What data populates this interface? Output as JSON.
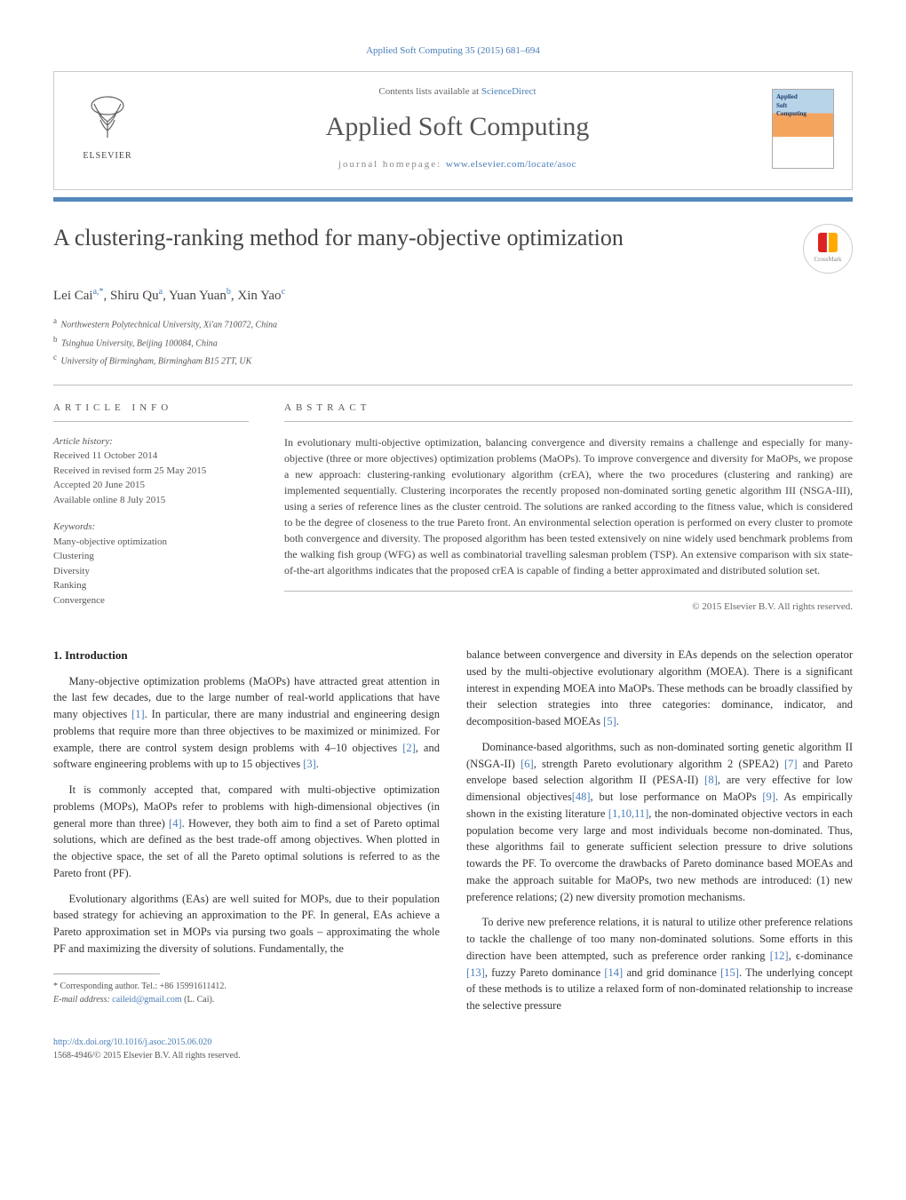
{
  "running_head": "Applied Soft Computing 35 (2015) 681–694",
  "header": {
    "publisher": "ELSEVIER",
    "contents_prefix": "Contents lists available at ",
    "contents_link": "ScienceDirect",
    "journal_name": "Applied Soft Computing",
    "homepage_prefix": "journal homepage: ",
    "homepage_url": "www.elsevier.com/locate/asoc",
    "cover_label": "Applied\nSoft\nComputing"
  },
  "crossmark": "CrossMark",
  "title": "A clustering-ranking method for many-objective optimization",
  "authors_html": "Lei Cai<sup>a,*</sup>, Shiru Qu<sup>a</sup>, Yuan Yuan<sup>b</sup>, Xin Yao<sup>c</sup>",
  "affiliations": [
    {
      "sup": "a",
      "text": "Northwestern Polytechnical University, Xi'an 710072, China"
    },
    {
      "sup": "b",
      "text": "Tsinghua University, Beijing 100084, China"
    },
    {
      "sup": "c",
      "text": "University of Birmingham, Birmingham B15 2TT, UK"
    }
  ],
  "article_info": {
    "heading": "article info",
    "history_label": "Article history:",
    "history": [
      "Received 11 October 2014",
      "Received in revised form 25 May 2015",
      "Accepted 20 June 2015",
      "Available online 8 July 2015"
    ],
    "keywords_label": "Keywords:",
    "keywords": [
      "Many-objective optimization",
      "Clustering",
      "Diversity",
      "Ranking",
      "Convergence"
    ]
  },
  "abstract": {
    "heading": "abstract",
    "text": "In evolutionary multi-objective optimization, balancing convergence and diversity remains a challenge and especially for many-objective (three or more objectives) optimization problems (MaOPs). To improve convergence and diversity for MaOPs, we propose a new approach: clustering-ranking evolutionary algorithm (crEA), where the two procedures (clustering and ranking) are implemented sequentially. Clustering incorporates the recently proposed non-dominated sorting genetic algorithm III (NSGA-III), using a series of reference lines as the cluster centroid. The solutions are ranked according to the fitness value, which is considered to be the degree of closeness to the true Pareto front. An environmental selection operation is performed on every cluster to promote both convergence and diversity. The proposed algorithm has been tested extensively on nine widely used benchmark problems from the walking fish group (WFG) as well as combinatorial travelling salesman problem (TSP). An extensive comparison with six state-of-the-art algorithms indicates that the proposed crEA is capable of finding a better approximated and distributed solution set.",
    "copyright": "© 2015 Elsevier B.V. All rights reserved."
  },
  "body": {
    "h_intro": "1.  Introduction",
    "p1": "Many-objective optimization problems (MaOPs) have attracted great attention in the last few decades, due to the large number of real-world applications that have many objectives [1]. In particular, there are many industrial and engineering design problems that require more than three objectives to be maximized or minimized. For example, there are control system design problems with 4–10 objectives [2], and software engineering problems with up to 15 objectives [3].",
    "p2": "It is commonly accepted that, compared with multi-objective optimization problems (MOPs), MaOPs refer to problems with high-dimensional objectives (in general more than three) [4]. However, they both aim to find a set of Pareto optimal solutions, which are defined as the best trade-off among objectives. When plotted in the objective space, the set of all the Pareto optimal solutions is referred to as the Pareto front (PF).",
    "p3": "Evolutionary algorithms (EAs) are well suited for MOPs, due to their population based strategy for achieving an approximation to the PF. In general, EAs achieve a Pareto approximation set in MOPs via pursing two goals – approximating the whole PF and maximizing the diversity of solutions. Fundamentally, the",
    "p4": "balance between convergence and diversity in EAs depends on the selection operator used by the multi-objective evolutionary algorithm (MOEA). There is a significant interest in expending MOEA into MaOPs. These methods can be broadly classified by their selection strategies into three categories: dominance, indicator, and decomposition-based MOEAs [5].",
    "p5": "Dominance-based algorithms, such as non-dominated sorting genetic algorithm II (NSGA-II) [6], strength Pareto evolutionary algorithm 2 (SPEA2) [7] and Pareto envelope based selection algorithm II (PESA-II) [8], are very effective for low dimensional objectives[48], but lose performance on MaOPs [9]. As empirically shown in the existing literature [1,10,11], the non-dominated objective vectors in each population become very large and most individuals become non-dominated. Thus, these algorithms fail to generate sufficient selection pressure to drive solutions towards the PF. To overcome the drawbacks of Pareto dominance based MOEAs and make the approach suitable for MaOPs, two new methods are introduced: (1) new preference relations; (2) new diversity promotion mechanisms.",
    "p6": "To derive new preference relations, it is natural to utilize other preference relations to tackle the challenge of too many non-dominated solutions. Some efforts in this direction have been attempted, such as preference order ranking [12], ϵ-dominance [13], fuzzy Pareto dominance [14] and grid dominance [15]. The underlying concept of these methods is to utilize a relaxed form of non-dominated relationship to increase the selective pressure"
  },
  "footnote": {
    "corr": "* Corresponding author. Tel.: +86 15991611412.",
    "email_label": "E-mail address: ",
    "email": "caileid@gmail.com",
    "email_suffix": " (L. Cai)."
  },
  "ids": {
    "doi": "http://dx.doi.org/10.1016/j.asoc.2015.06.020",
    "issn": "1568-4946/© 2015 Elsevier B.V. All rights reserved."
  },
  "colors": {
    "link": "#4a7db8",
    "bar": "#5588bb"
  }
}
